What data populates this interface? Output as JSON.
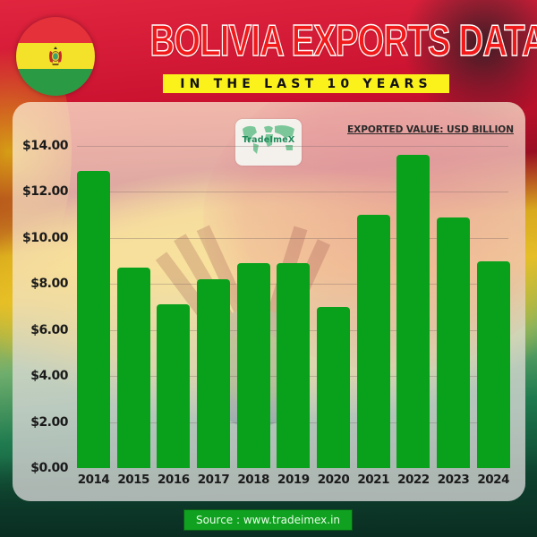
{
  "header": {
    "title": "BOLIVIA EXPORTS DATA",
    "subtitle": "IN THE LAST 10 YEARS",
    "flag_icon": "bolivia-flag-icon"
  },
  "logo": {
    "text": "TradeImeX",
    "icon": "world-map-icon"
  },
  "chart_data": {
    "type": "bar",
    "title": "BOLIVIA EXPORTS DATA",
    "subtitle": "IN THE LAST 10 YEARS",
    "xlabel": "",
    "ylabel": "EXPORTED VALUE: USD BILLION",
    "categories": [
      "2014",
      "2015",
      "2016",
      "2017",
      "2018",
      "2019",
      "2020",
      "2021",
      "2022",
      "2023",
      "2024"
    ],
    "values": [
      12.9,
      8.7,
      7.1,
      8.2,
      8.9,
      8.9,
      7.0,
      11.0,
      13.6,
      10.9,
      9.0
    ],
    "yticks": [
      "$0.00",
      "$2.00",
      "$4.00",
      "$6.00",
      "$8.00",
      "$10.00",
      "$12.00",
      "$14.00"
    ],
    "ylim": [
      0,
      14
    ],
    "grid": true,
    "legend": "none",
    "bar_color": "#09a01b",
    "annotations": [
      "EXPORTED VALUE: USD BILLION"
    ]
  },
  "unit_label": "EXPORTED VALUE: USD BILLION",
  "footer": {
    "source": "Source : www.tradeimex.in"
  },
  "colors": {
    "title_red": "#f01a1a",
    "subtitle_bg": "#fbf11b",
    "bar_green": "#09a01b",
    "source_bg": "#0fa11f"
  }
}
